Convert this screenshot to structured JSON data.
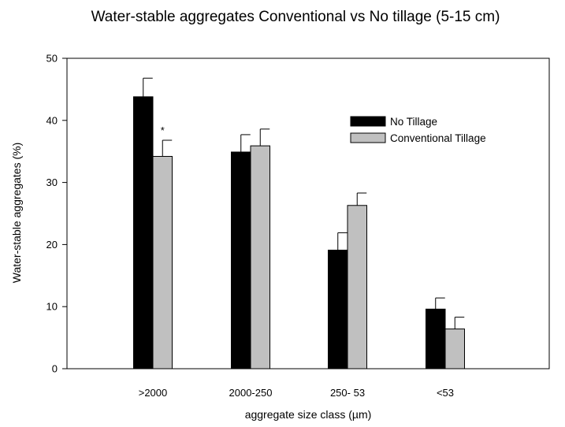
{
  "chart_data": {
    "type": "bar",
    "title": "Water-stable aggregates Conventional vs No tillage  (5-15 cm)",
    "xlabel": "aggregate size class (µm)",
    "ylabel": "Water-stable aggregates (%)",
    "ylim": [
      0,
      50
    ],
    "yticks": [
      "0",
      "10",
      "20",
      "30",
      "40",
      "50"
    ],
    "categories": [
      ">2000",
      "2000-250",
      "250- 53",
      "<53"
    ],
    "series": [
      {
        "name": "No Tillage",
        "color": "#000000",
        "values": [
          43.8,
          34.9,
          19.1,
          9.6
        ],
        "errors": [
          3.0,
          2.8,
          2.8,
          1.8
        ]
      },
      {
        "name": "Conventional Tillage",
        "color": "#c0c0c0",
        "values": [
          34.2,
          35.9,
          26.3,
          6.4
        ],
        "errors": [
          2.6,
          2.7,
          2.0,
          1.9
        ]
      }
    ],
    "annotations": [
      {
        "category": ">2000",
        "series": "Conventional Tillage",
        "text": "*"
      }
    ],
    "legend": "top-right",
    "grid": false
  }
}
